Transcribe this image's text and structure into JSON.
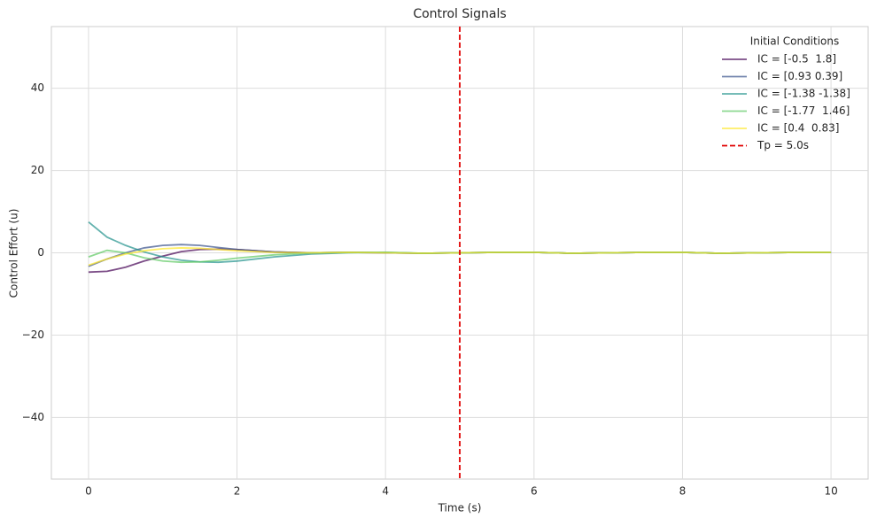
{
  "chart_data": {
    "type": "line",
    "title": "Control Signals",
    "xlabel": "Time (s)",
    "ylabel": "Control Effort (u)",
    "x": [
      0,
      0.25,
      0.5,
      0.75,
      1,
      1.25,
      1.5,
      1.75,
      2,
      2.5,
      3,
      3.5,
      4,
      4.5,
      5,
      5.5,
      6,
      6.5,
      7,
      7.5,
      8,
      8.5,
      9,
      9.5,
      10
    ],
    "series": [
      {
        "name": "IC = [-0.5  1.8]",
        "color": "#440154",
        "values": [
          -4.7,
          -4.5,
          -3.5,
          -2,
          -0.8,
          0.3,
          0.8,
          0.9,
          0.8,
          0.2,
          0,
          0.1,
          0,
          -0.1,
          0,
          0.1,
          0.1,
          -0.1,
          0,
          0.1,
          0.1,
          -0.1,
          0,
          0.1,
          0.1
        ]
      },
      {
        "name": "IC = [0.93 0.39]",
        "color": "#3b528b",
        "values": [
          -3.3,
          -1.5,
          0,
          1.2,
          1.8,
          2,
          1.8,
          1.3,
          0.8,
          0.2,
          0,
          0.1,
          0,
          -0.1,
          0,
          0.1,
          0.1,
          -0.1,
          0,
          0.1,
          0.1,
          -0.1,
          0,
          0.1,
          0.1
        ]
      },
      {
        "name": "IC = [-1.38 -1.38]",
        "color": "#21918c",
        "values": [
          7.5,
          3.8,
          1.8,
          0.2,
          -1,
          -1.8,
          -2.2,
          -2.3,
          -2,
          -1,
          -0.3,
          0,
          0.1,
          -0.1,
          0,
          0.1,
          0.1,
          -0.1,
          0,
          0.1,
          0.1,
          -0.1,
          0,
          0.1,
          0.1
        ]
      },
      {
        "name": "IC = [-1.77  1.46]",
        "color": "#5ec962",
        "values": [
          -1,
          0.6,
          0,
          -1.2,
          -2,
          -2.3,
          -2.2,
          -1.8,
          -1.3,
          -0.5,
          0,
          0.1,
          0.1,
          -0.1,
          0,
          0.1,
          0.1,
          -0.1,
          0,
          0.1,
          0.1,
          -0.1,
          0,
          0.1,
          0.1
        ]
      },
      {
        "name": "IC = [0.4  0.83]",
        "color": "#fde725",
        "values": [
          -3,
          -1.5,
          -0.3,
          0.5,
          1,
          1.2,
          1.1,
          0.8,
          0.5,
          0.1,
          0,
          0.1,
          0,
          -0.1,
          0,
          0.1,
          0.1,
          -0.1,
          0,
          0.1,
          0.1,
          -0.1,
          0,
          0.1,
          0.1
        ]
      }
    ],
    "alpha": 0.7,
    "vline": {
      "x": 5,
      "color": "#e00000",
      "name": "Tp = 5.0s"
    },
    "legend_title": "Initial Conditions",
    "legend": "upper right",
    "xlim": [
      -0.5,
      10.5
    ],
    "xticks": [
      0,
      2,
      4,
      6,
      8,
      10
    ],
    "ylim": [
      -55,
      55
    ],
    "yticks": [
      {
        "value": -40,
        "label": "−40"
      },
      {
        "value": -20,
        "label": "−20"
      },
      0,
      20,
      40
    ],
    "grid": true
  }
}
